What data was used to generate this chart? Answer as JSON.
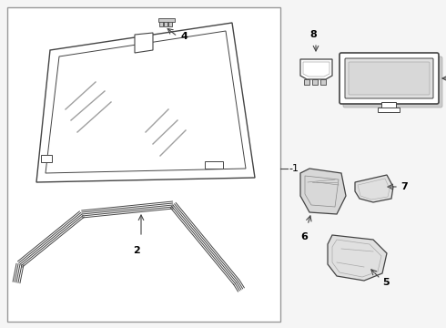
{
  "bg": "#f5f5f5",
  "white": "#ffffff",
  "lc": "#444444",
  "gray1": "#cccccc",
  "gray2": "#888888",
  "gray3": "#aaaaaa",
  "panel_border": "#999999",
  "figsize": [
    4.9,
    3.6
  ],
  "dpi": 100
}
